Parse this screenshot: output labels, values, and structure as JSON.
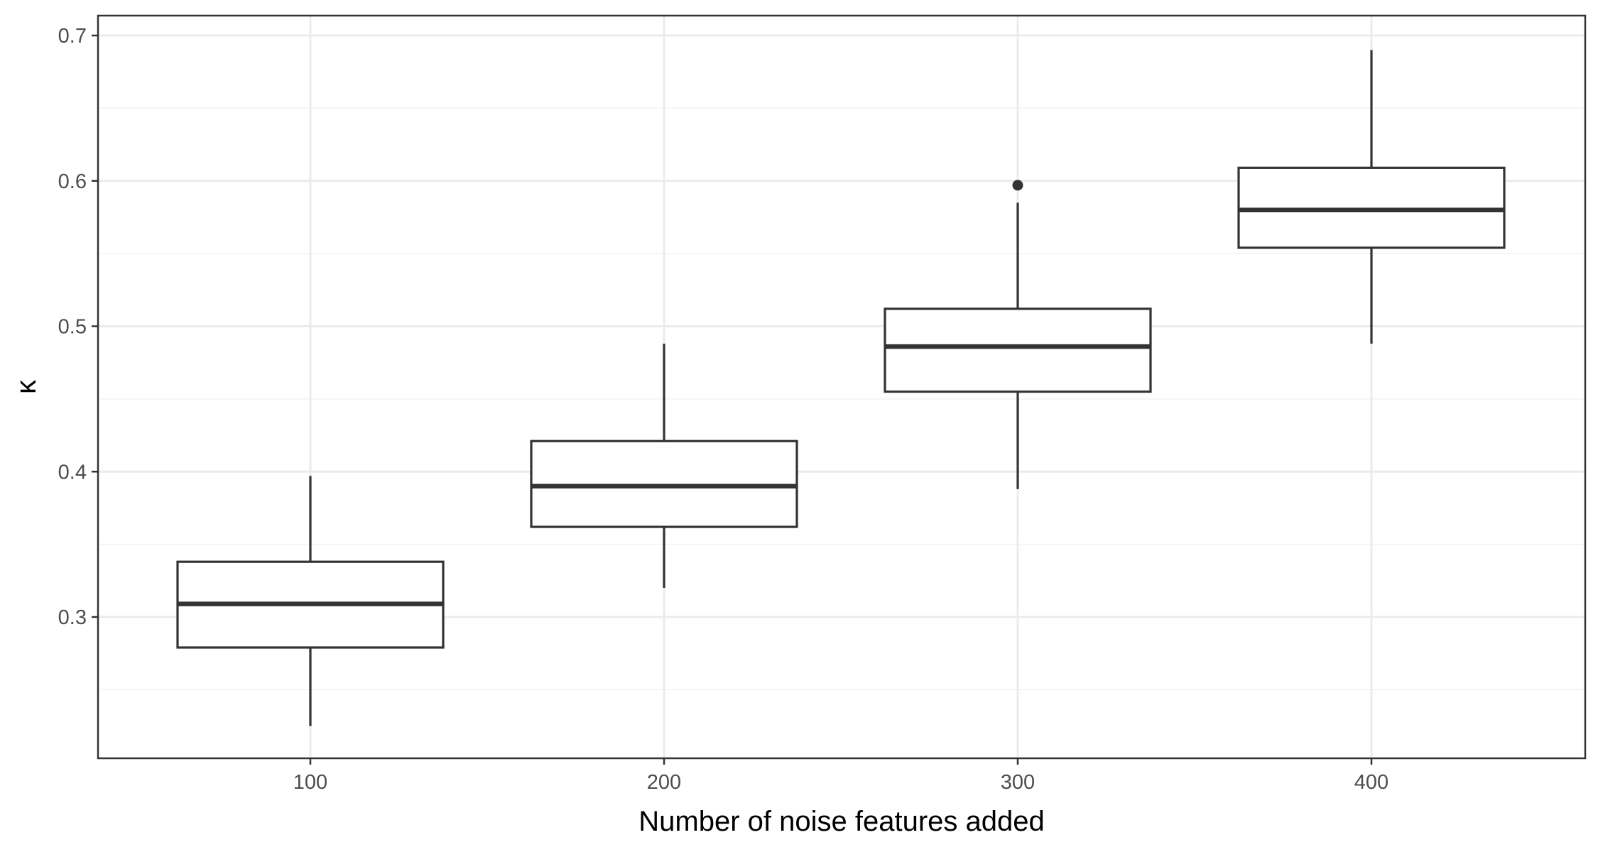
{
  "chart_data": {
    "type": "boxplot",
    "title": "",
    "xlabel": "Number of noise features added",
    "ylabel": "κ",
    "categories": [
      "100",
      "200",
      "300",
      "400"
    ],
    "boxes": [
      {
        "category": "100",
        "whisker_low": 0.225,
        "q1": 0.279,
        "median": 0.309,
        "q3": 0.338,
        "whisker_high": 0.397,
        "outliers": []
      },
      {
        "category": "200",
        "whisker_low": 0.32,
        "q1": 0.362,
        "median": 0.39,
        "q3": 0.421,
        "whisker_high": 0.488,
        "outliers": []
      },
      {
        "category": "300",
        "whisker_low": 0.388,
        "q1": 0.455,
        "median": 0.486,
        "q3": 0.512,
        "whisker_high": 0.585,
        "outliers": [
          0.597
        ]
      },
      {
        "category": "400",
        "whisker_low": 0.488,
        "q1": 0.554,
        "median": 0.58,
        "q3": 0.609,
        "whisker_high": 0.69,
        "outliers": []
      }
    ],
    "y_ticks": [
      0.3,
      0.4,
      0.5,
      0.6,
      0.7
    ],
    "y_tick_labels": [
      "0.3",
      "0.4",
      "0.5",
      "0.6",
      "0.7"
    ],
    "ylim": [
      0.2,
      0.7
    ],
    "grid": true,
    "legend": "none"
  }
}
